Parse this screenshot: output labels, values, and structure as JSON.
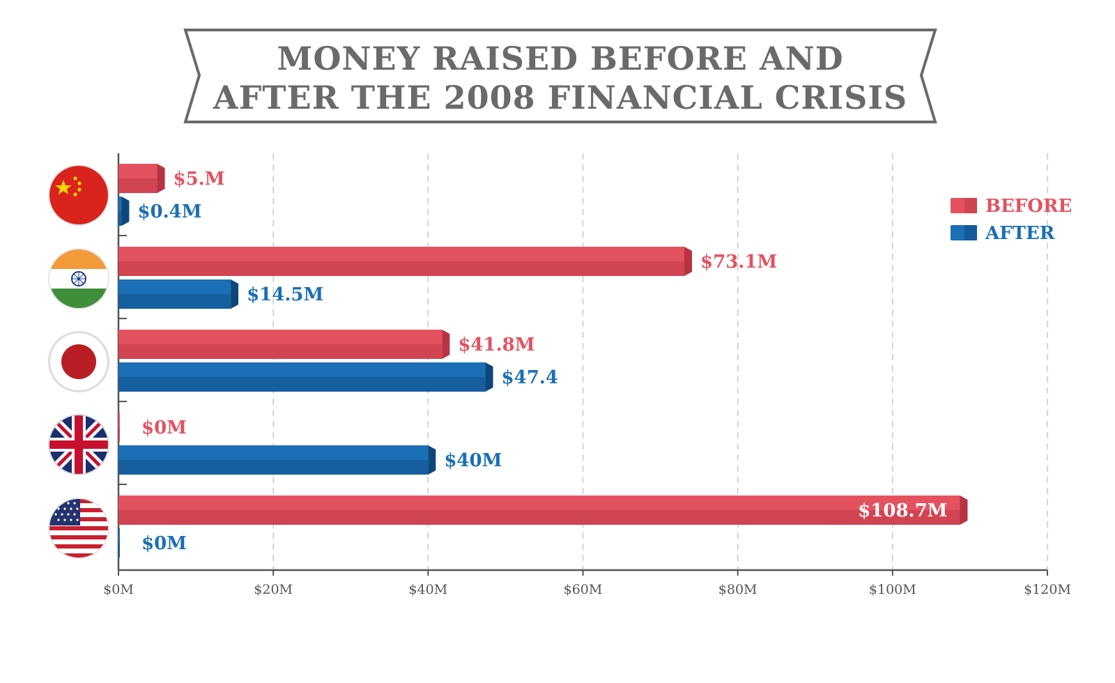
{
  "chart_data": {
    "type": "bar",
    "orientation": "horizontal",
    "title": "MONEY RAISED BEFORE AND AFTER THE 2008 FINANCIAL CRISIS",
    "title_lines": [
      "MONEY RAISED BEFORE AND",
      "AFTER THE 2008 FINANCIAL CRISIS"
    ],
    "categories": [
      "China",
      "India",
      "Japan",
      "United Kingdom",
      "United States"
    ],
    "series": [
      {
        "name": "BEFORE",
        "color": "#e4525f",
        "values": [
          5,
          73.1,
          41.8,
          0,
          108.7
        ],
        "labels": [
          "$5.M",
          "$73.1M",
          "$41.8M",
          "$0M",
          "$108.7M"
        ]
      },
      {
        "name": "AFTER",
        "color": "#1a6fb5",
        "values": [
          0.4,
          14.5,
          47.4,
          40,
          0
        ],
        "labels": [
          "$0.4M",
          "$14.5M",
          "$47.4",
          "$40M",
          "$0M"
        ]
      }
    ],
    "xlim": [
      0,
      120
    ],
    "xticks": [
      0,
      20,
      40,
      60,
      80,
      100,
      120
    ],
    "xtick_labels": [
      "$0M",
      "$20M",
      "$40M",
      "$60M",
      "$80M",
      "$100M",
      "$120M"
    ],
    "grid": true,
    "legend_position": "top-right",
    "category_icons": [
      "china-flag-icon",
      "india-flag-icon",
      "japan-flag-icon",
      "uk-flag-icon",
      "usa-flag-icon"
    ]
  }
}
